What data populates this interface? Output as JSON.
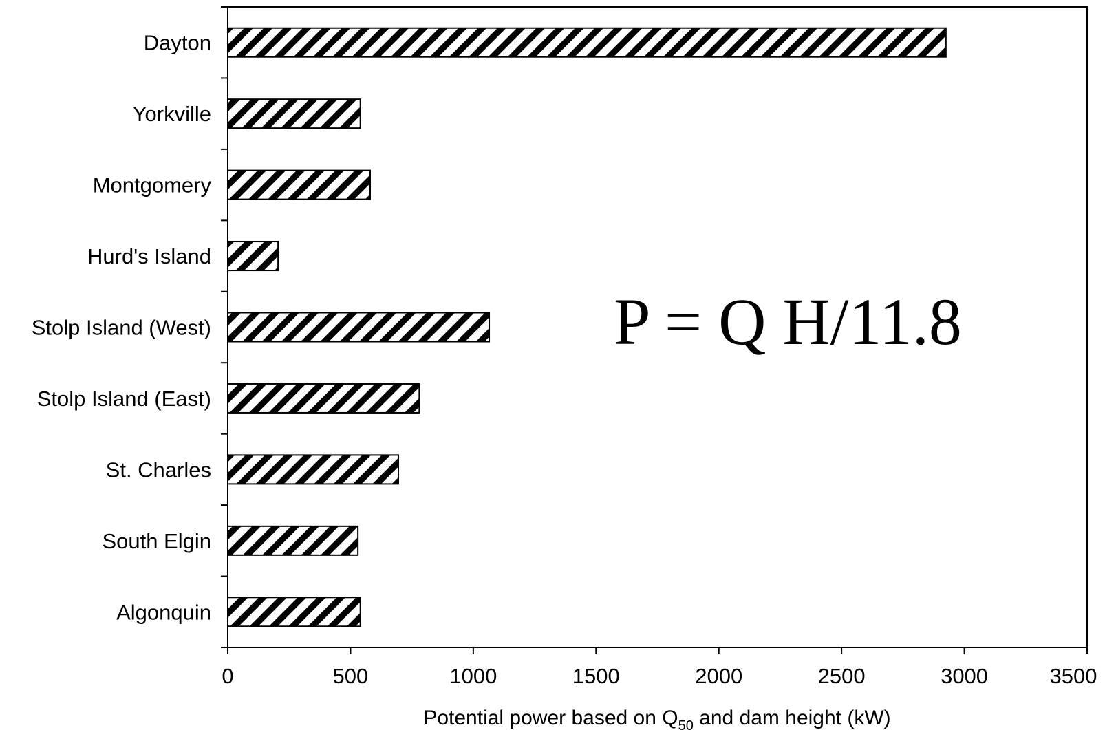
{
  "chart_data": {
    "type": "bar",
    "orientation": "horizontal",
    "categories": [
      "Dayton",
      "Yorkville",
      "Montgomery",
      "Hurd's Island",
      "Stolp Island (West)",
      "Stolp Island (East)",
      "St. Charles",
      "South Elgin",
      "Algonquin"
    ],
    "values": [
      2925,
      540,
      580,
      205,
      1065,
      780,
      695,
      530,
      540
    ],
    "xlim": [
      0,
      3500
    ],
    "xticks": [
      0,
      500,
      1000,
      1500,
      2000,
      2500,
      3000,
      3500
    ],
    "xtick_labels": [
      "0",
      "500",
      "1000",
      "1500",
      "2000",
      "2500",
      "3000",
      "3500"
    ],
    "xlabel": {
      "before": "Potential power based on Q",
      "subscript": "50",
      "after": " and dam height (kW)"
    },
    "ylabel": "",
    "title": "",
    "annotation": "P = Q H/11.8",
    "grid": false,
    "legend": "none",
    "bar_fill": "diagonal-hatch",
    "colors": {
      "bar_edge": "#000000",
      "hatch": "#000000",
      "background": "#ffffff"
    }
  }
}
